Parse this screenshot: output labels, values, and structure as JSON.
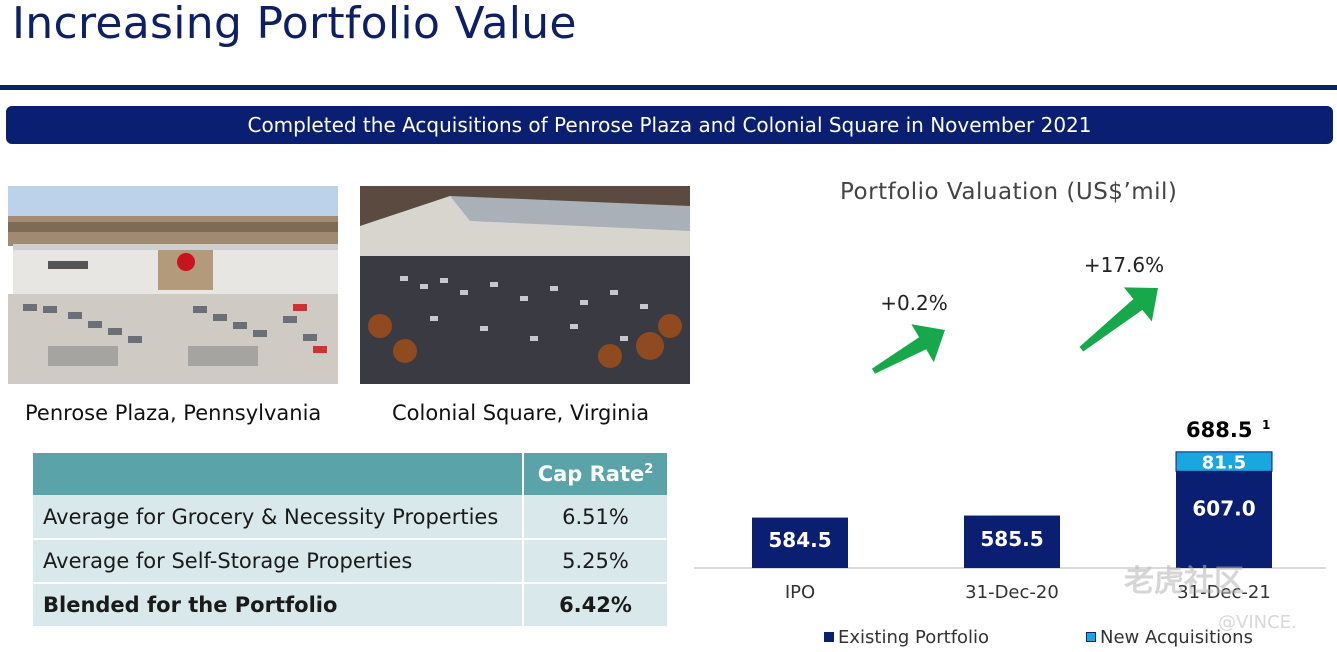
{
  "page": {
    "title": "Increasing Portfolio Value",
    "banner": "Completed the Acquisitions of Penrose Plaza and Colonial Square in November 2021"
  },
  "photos": [
    {
      "caption": "Penrose Plaza, Pennsylvania"
    },
    {
      "caption": "Colonial Square, Virginia"
    }
  ],
  "cap_table": {
    "header": "Cap Rate",
    "header_footnote": "2",
    "rows": [
      {
        "label": "Average for Grocery & Necessity Properties",
        "value": "6.51%"
      },
      {
        "label": "Average for Self-Storage Properties",
        "value": "5.25%"
      },
      {
        "label": "Blended for the Portfolio",
        "value": "6.42%"
      }
    ]
  },
  "chart_data": {
    "type": "bar",
    "title": "Portfolio Valuation (US$’mil)",
    "categories": [
      "IPO",
      "31-Dec-20",
      "31-Dec-21"
    ],
    "series": [
      {
        "name": "Existing Portfolio",
        "values": [
          584.5,
          585.5,
          607.0
        ],
        "labels": [
          "584.5",
          "585.5",
          "607.0"
        ],
        "color": "#0b1f72"
      },
      {
        "name": "New Acquisitions",
        "values": [
          0,
          0,
          81.5
        ],
        "labels": [
          "",
          "",
          "81.5"
        ],
        "color": "#1aa7e0"
      }
    ],
    "total_label": "688.5",
    "total_footnote": "1",
    "growth_annotations": [
      "+0.2%",
      "+17.6%"
    ],
    "arrow_color": "#16a84a",
    "ylim": [
      0,
      700
    ],
    "grid": false,
    "legend": "bottom"
  },
  "watermark": {
    "brand": "老虎社区",
    "user": "@VINCE."
  }
}
